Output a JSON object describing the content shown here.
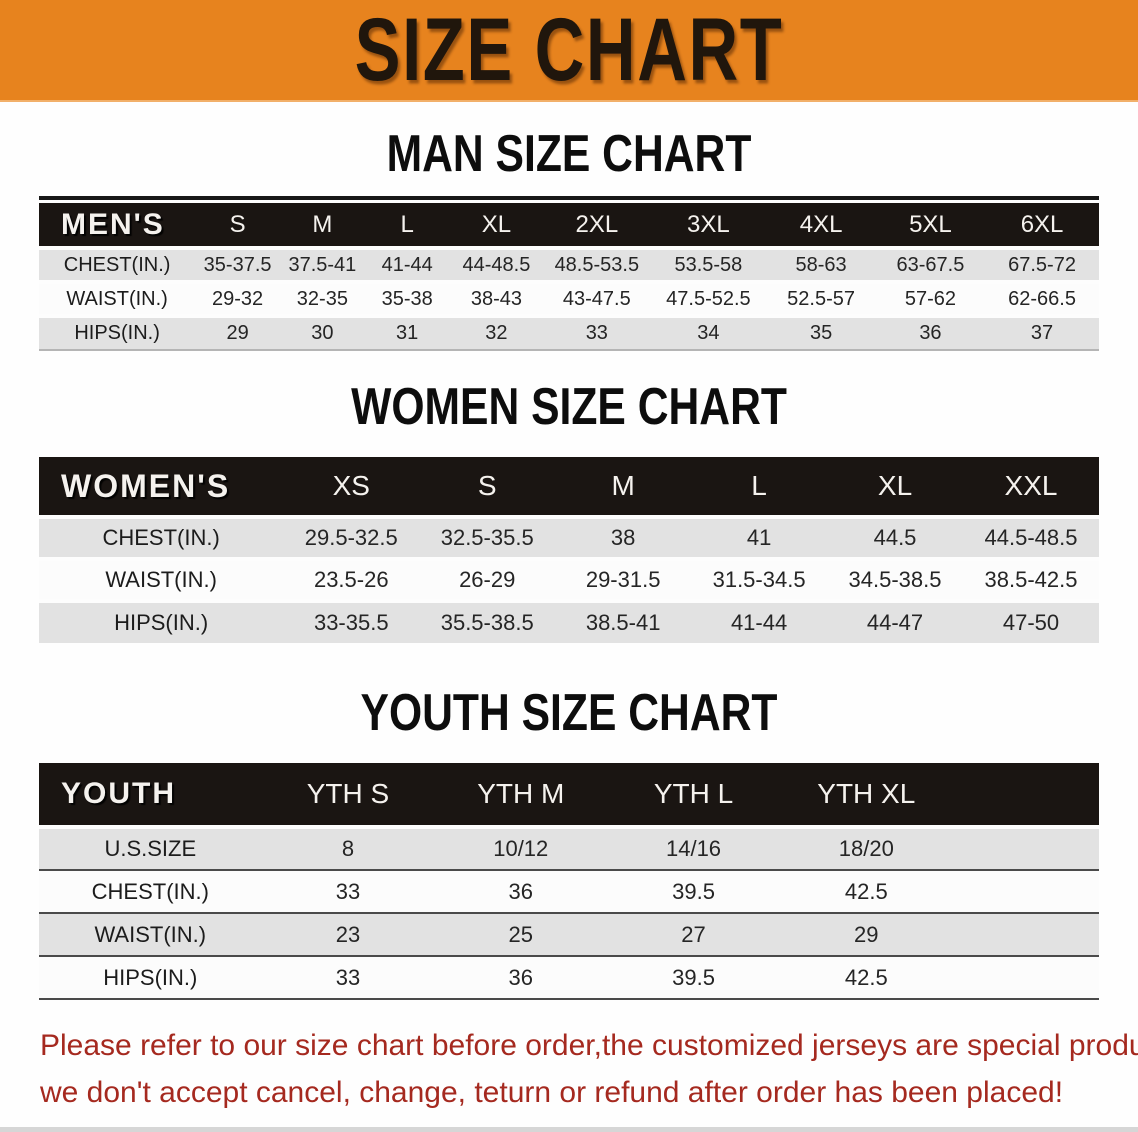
{
  "banner": {
    "title": "SIZE CHART",
    "background_color": "#E7831E",
    "text_color": "#20160C"
  },
  "sections": {
    "men": {
      "heading": "MAN SIZE CHART",
      "table": {
        "header_label": "MEN'S",
        "columns": [
          "S",
          "M",
          "L",
          "XL",
          "2XL",
          "3XL",
          "4XL",
          "5XL",
          "6XL"
        ],
        "rows": [
          {
            "label": "CHEST(IN.)",
            "values": [
              "35-37.5",
              "37.5-41",
              "41-44",
              "44-48.5",
              "48.5-53.5",
              "53.5-58",
              "58-63",
              "63-67.5",
              "67.5-72"
            ]
          },
          {
            "label": "WAIST(IN.)",
            "values": [
              "29-32",
              "32-35",
              "35-38",
              "38-43",
              "43-47.5",
              "47.5-52.5",
              "52.5-57",
              "57-62",
              "62-66.5"
            ]
          },
          {
            "label": "HIPS(IN.)",
            "values": [
              "29",
              "30",
              "31",
              "32",
              "33",
              "34",
              "35",
              "36",
              "37"
            ]
          }
        ]
      }
    },
    "women": {
      "heading": "WOMEN SIZE CHART",
      "table": {
        "header_label": "WOMEN'S",
        "columns": [
          "XS",
          "S",
          "M",
          "L",
          "XL",
          "XXL"
        ],
        "rows": [
          {
            "label": "CHEST(IN.)",
            "values": [
              "29.5-32.5",
              "32.5-35.5",
              "38",
              "41",
              "44.5",
              "44.5-48.5"
            ]
          },
          {
            "label": "WAIST(IN.)",
            "values": [
              "23.5-26",
              "26-29",
              "29-31.5",
              "31.5-34.5",
              "34.5-38.5",
              "38.5-42.5"
            ]
          },
          {
            "label": "HIPS(IN.)",
            "values": [
              "33-35.5",
              "35.5-38.5",
              "38.5-41",
              "41-44",
              "44-47",
              "47-50"
            ]
          }
        ]
      }
    },
    "youth": {
      "heading": "YOUTH SIZE CHART",
      "table": {
        "header_label": "YOUTH",
        "columns": [
          "YTH S",
          "YTH M",
          "YTH L",
          "YTH XL"
        ],
        "rows": [
          {
            "label": "U.S.SIZE",
            "values": [
              "8",
              "10/12",
              "14/16",
              "18/20"
            ]
          },
          {
            "label": "CHEST(IN.)",
            "values": [
              "33",
              "36",
              "39.5",
              "42.5"
            ]
          },
          {
            "label": "WAIST(IN.)",
            "values": [
              "23",
              "25",
              "27",
              "29"
            ]
          },
          {
            "label": "HIPS(IN.)",
            "values": [
              "33",
              "36",
              "39.5",
              "42.5"
            ]
          }
        ]
      }
    }
  },
  "footer_note": {
    "line1": "Please refer to our size chart before order,the customized jerseys are special products,",
    "line2": "we don't accept cancel, change, teturn or refund after order has been placed!",
    "text_color": "#A5291F"
  }
}
